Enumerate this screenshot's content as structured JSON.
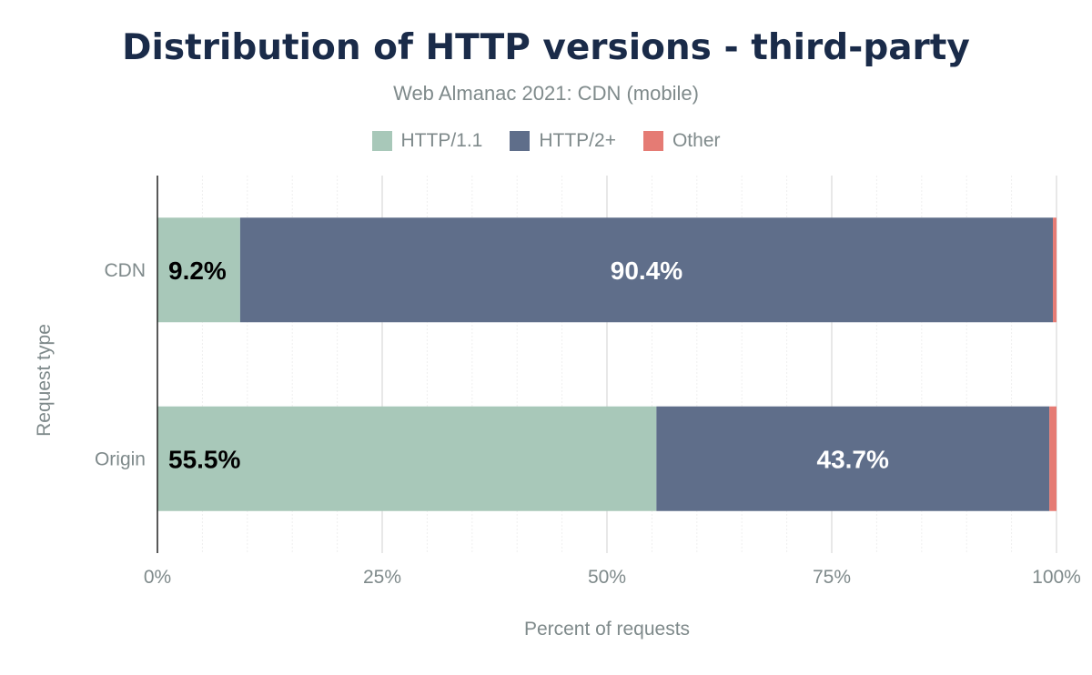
{
  "chart_data": {
    "type": "bar",
    "orientation": "horizontal",
    "stacked": true,
    "title": "Distribution of HTTP versions - third-party",
    "subtitle": "Web Almanac 2021: CDN (mobile)",
    "xlabel": "Percent of requests",
    "ylabel": "Request type",
    "xlim": [
      0,
      100
    ],
    "x_ticks": [
      "0%",
      "25%",
      "50%",
      "75%",
      "100%"
    ],
    "grid": true,
    "legend": "top",
    "categories": [
      "CDN",
      "Origin"
    ],
    "series": [
      {
        "name": "HTTP/1.1",
        "color": "#a8c8b9",
        "values": [
          9.2,
          55.5
        ],
        "labels": [
          "9.2%",
          "55.5%"
        ],
        "label_color": "#000000"
      },
      {
        "name": "HTTP/2+",
        "color": "#5f6e8a",
        "values": [
          90.4,
          43.7
        ],
        "labels": [
          "90.4%",
          "43.7%"
        ],
        "label_color": "#ffffff"
      },
      {
        "name": "Other",
        "color": "#e57b74",
        "values": [
          0.4,
          0.8
        ],
        "labels": [
          "",
          ""
        ],
        "label_color": "#ffffff"
      }
    ]
  }
}
